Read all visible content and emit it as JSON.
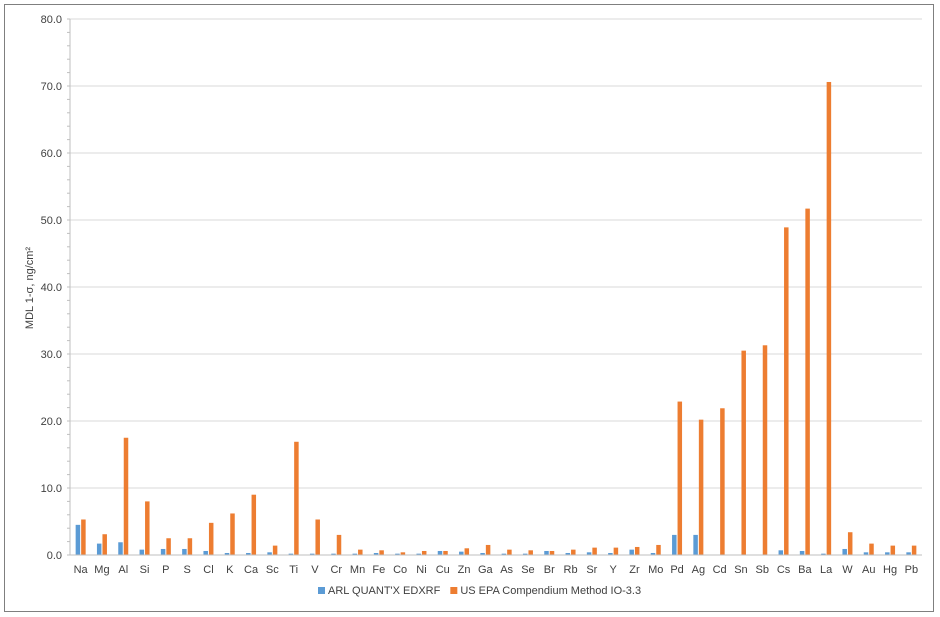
{
  "chart_data": {
    "type": "bar",
    "ylabel": "MDL 1-σ, ng/cm²",
    "ylim": [
      0,
      80
    ],
    "yticks": [
      "0.0",
      "10.0",
      "20.0",
      "30.0",
      "40.0",
      "50.0",
      "60.0",
      "70.0",
      "80.0"
    ],
    "grid": true,
    "legend_position": "bottom",
    "categories": [
      "Na",
      "Mg",
      "Al",
      "Si",
      "P",
      "S",
      "Cl",
      "K",
      "Ca",
      "Sc",
      "Ti",
      "V",
      "Cr",
      "Mn",
      "Fe",
      "Co",
      "Ni",
      "Cu",
      "Zn",
      "Ga",
      "As",
      "Se",
      "Br",
      "Rb",
      "Sr",
      "Y",
      "Zr",
      "Mo",
      "Pd",
      "Ag",
      "Cd",
      "Sn",
      "Sb",
      "Cs",
      "Ba",
      "La",
      "W",
      "Au",
      "Hg",
      "Pb"
    ],
    "series": [
      {
        "name": "ARL QUANT'X EDXRF",
        "color": "#5b9bd5",
        "values": [
          4.5,
          1.7,
          1.9,
          0.8,
          0.9,
          0.9,
          0.6,
          0.3,
          0.3,
          0.4,
          0.2,
          0.2,
          0.2,
          0.2,
          0.3,
          0.2,
          0.2,
          0.6,
          0.5,
          0.3,
          0.2,
          0.2,
          0.6,
          0.3,
          0.4,
          0.3,
          0.8,
          0.3,
          3.0,
          3.0,
          0.0,
          0.0,
          0.0,
          0.7,
          0.6,
          0.2,
          0.9,
          0.4,
          0.4,
          0.4
        ]
      },
      {
        "name": "US EPA Compendium Method IO-3.3",
        "color": "#ed7d31",
        "values": [
          5.3,
          3.1,
          17.5,
          8.0,
          2.5,
          2.5,
          4.8,
          6.2,
          9.0,
          1.4,
          16.9,
          5.3,
          3.0,
          0.8,
          0.7,
          0.4,
          0.6,
          0.6,
          1.0,
          1.5,
          0.8,
          0.7,
          0.6,
          0.8,
          1.1,
          1.1,
          1.2,
          1.5,
          22.9,
          20.2,
          21.9,
          30.5,
          31.3,
          48.9,
          51.7,
          70.6,
          3.4,
          1.7,
          1.4,
          1.4
        ]
      }
    ]
  }
}
